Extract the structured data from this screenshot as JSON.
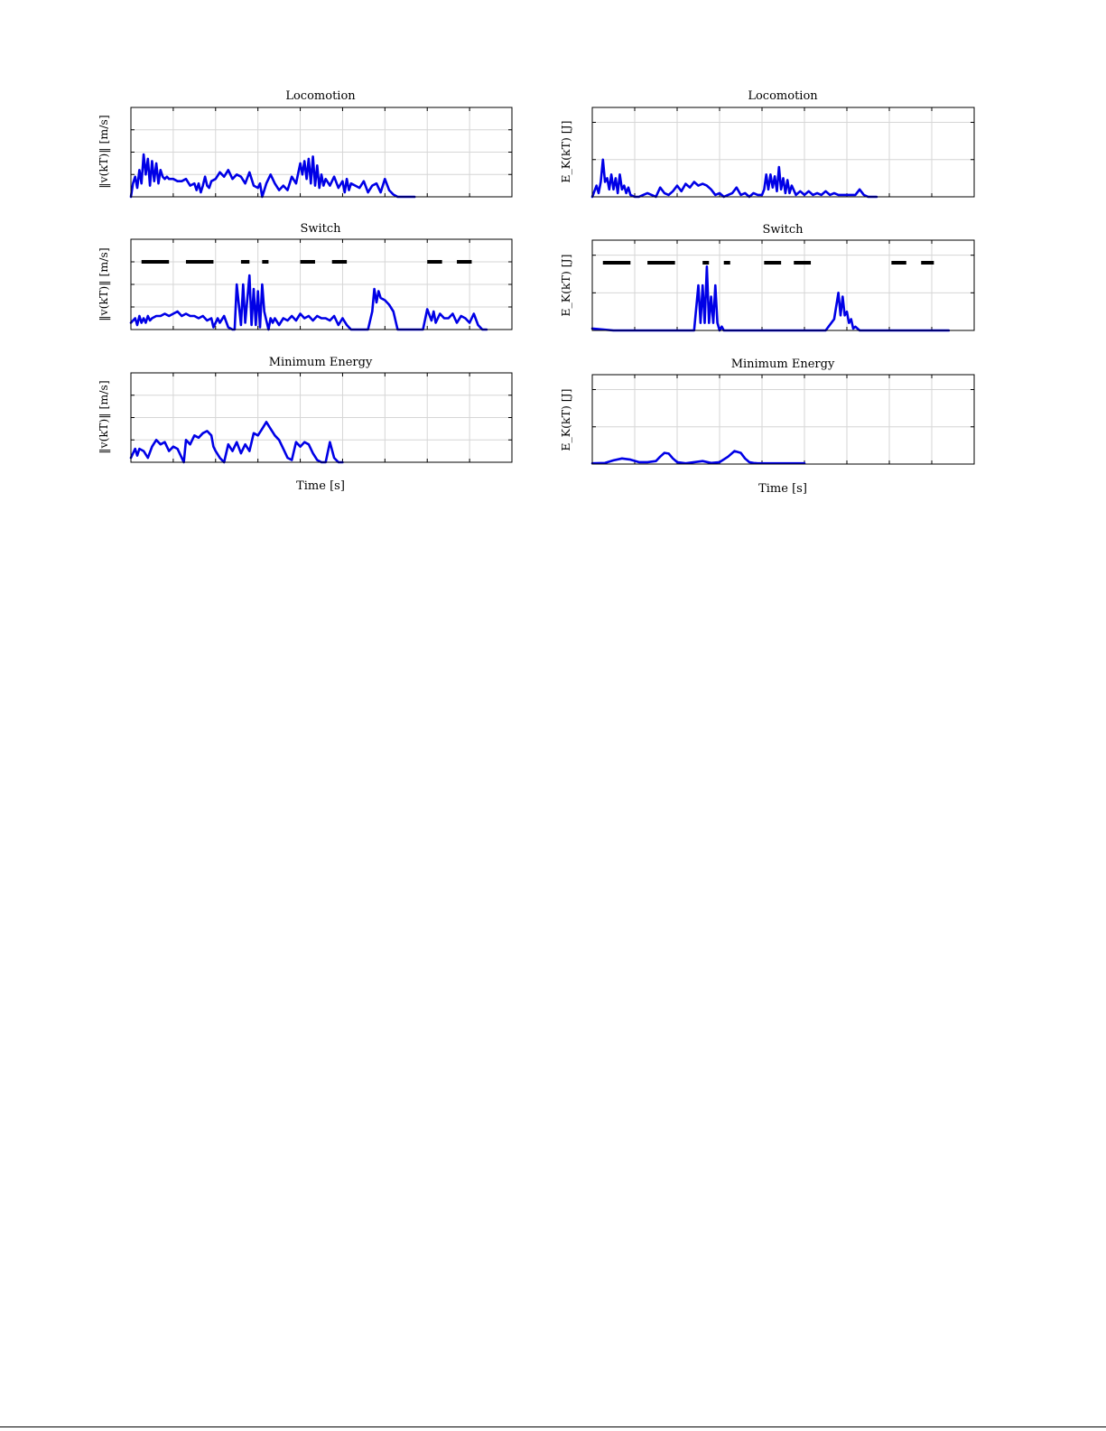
{
  "figure": {
    "xlabel": "Time [s]",
    "colors": {
      "series": "#0000e6",
      "switch_segments": "#000000",
      "grid": "#d6d6d6"
    }
  },
  "chart_data": [
    {
      "type": "line",
      "title": "Locomotion",
      "ylabel": "‖v(kT)‖ [m/s]",
      "xlim": [
        0,
        9
      ],
      "ylim": [
        0,
        4
      ],
      "xticks": [
        0,
        1,
        2,
        3,
        4,
        5,
        6,
        7,
        8,
        9
      ],
      "yticks": [
        0,
        1,
        2,
        3,
        4
      ],
      "grid": true,
      "series": [
        {
          "x": [
            0,
            0.05,
            0.1,
            0.15,
            0.2,
            0.25,
            0.3,
            0.35,
            0.4,
            0.45,
            0.5,
            0.55,
            0.6,
            0.65,
            0.7,
            0.75,
            0.8,
            0.85,
            0.9,
            1,
            1.1,
            1.2,
            1.3,
            1.4,
            1.5,
            1.55,
            1.6,
            1.65,
            1.7,
            1.75,
            1.8,
            1.85,
            1.9,
            2,
            2.1,
            2.2,
            2.3,
            2.4,
            2.5,
            2.6,
            2.7,
            2.8,
            2.9,
            3,
            3.05,
            3.1,
            3.15,
            3.2,
            3.3,
            3.4,
            3.5,
            3.6,
            3.7,
            3.8,
            3.9,
            4,
            4.05,
            4.1,
            4.15,
            4.2,
            4.25,
            4.3,
            4.35,
            4.4,
            4.45,
            4.5,
            4.55,
            4.6,
            4.7,
            4.8,
            4.9,
            5,
            5.05,
            5.1,
            5.15,
            5.2,
            5.3,
            5.4,
            5.5,
            5.6,
            5.7,
            5.8,
            5.9,
            6,
            6.1,
            6.2,
            6.3,
            6.4,
            6.5,
            6.6,
            6.7
          ],
          "y": [
            0,
            0.6,
            0.9,
            0.4,
            1.2,
            0.6,
            1.9,
            1.0,
            1.7,
            0.5,
            1.6,
            0.7,
            1.5,
            0.6,
            1.2,
            0.9,
            0.8,
            0.9,
            0.8,
            0.8,
            0.7,
            0.7,
            0.8,
            0.5,
            0.6,
            0.3,
            0.6,
            0.2,
            0.5,
            0.9,
            0.5,
            0.4,
            0.7,
            0.8,
            1.1,
            0.9,
            1.2,
            0.8,
            1.0,
            0.9,
            0.6,
            1.1,
            0.5,
            0.4,
            0.6,
            0,
            0.3,
            0.6,
            1.0,
            0.6,
            0.3,
            0.5,
            0.3,
            0.9,
            0.6,
            1.5,
            1.0,
            1.6,
            0.8,
            1.7,
            0.6,
            1.8,
            0.5,
            1.4,
            0.4,
            1.0,
            0.5,
            0.8,
            0.5,
            0.9,
            0.4,
            0.7,
            0.2,
            0.8,
            0.3,
            0.6,
            0.5,
            0.4,
            0.7,
            0.2,
            0.5,
            0.6,
            0.2,
            0.8,
            0.3,
            0.1,
            0,
            0,
            0,
            0,
            0
          ]
        }
      ]
    },
    {
      "type": "line",
      "title": "Locomotion",
      "ylabel": "E_K(kT) [J]",
      "xlim": [
        0,
        9
      ],
      "ylim": [
        0,
        2.4
      ],
      "xticks": [
        0,
        1,
        2,
        3,
        4,
        5,
        6,
        7,
        8,
        9
      ],
      "yticks": [
        0,
        1,
        2
      ],
      "grid": true,
      "series": [
        {
          "x": [
            0,
            0.1,
            0.15,
            0.2,
            0.25,
            0.3,
            0.35,
            0.4,
            0.45,
            0.5,
            0.55,
            0.6,
            0.65,
            0.7,
            0.75,
            0.8,
            0.85,
            0.9,
            1,
            1.1,
            1.2,
            1.3,
            1.4,
            1.5,
            1.6,
            1.7,
            1.8,
            1.9,
            2,
            2.1,
            2.2,
            2.3,
            2.4,
            2.5,
            2.6,
            2.7,
            2.8,
            2.9,
            3,
            3.1,
            3.2,
            3.3,
            3.4,
            3.5,
            3.6,
            3.7,
            3.8,
            3.9,
            4,
            4.05,
            4.1,
            4.15,
            4.2,
            4.25,
            4.3,
            4.35,
            4.4,
            4.45,
            4.5,
            4.55,
            4.6,
            4.65,
            4.7,
            4.8,
            4.9,
            5,
            5.1,
            5.2,
            5.3,
            5.4,
            5.5,
            5.6,
            5.7,
            5.8,
            5.9,
            6,
            6.1,
            6.2,
            6.3,
            6.4,
            6.5,
            6.6,
            6.7
          ],
          "y": [
            0,
            0.3,
            0.1,
            0.4,
            1.0,
            0.4,
            0.5,
            0.2,
            0.6,
            0.2,
            0.5,
            0.1,
            0.6,
            0.2,
            0.3,
            0.1,
            0.25,
            0.05,
            0,
            0,
            0.05,
            0.1,
            0.05,
            0,
            0.25,
            0.1,
            0.05,
            0.15,
            0.3,
            0.15,
            0.35,
            0.25,
            0.4,
            0.3,
            0.35,
            0.3,
            0.2,
            0.05,
            0.1,
            0,
            0.05,
            0.1,
            0.25,
            0.05,
            0.1,
            0,
            0.1,
            0.05,
            0.05,
            0.2,
            0.6,
            0.2,
            0.6,
            0.25,
            0.55,
            0.15,
            0.8,
            0.2,
            0.5,
            0.1,
            0.45,
            0.1,
            0.3,
            0.05,
            0.15,
            0.05,
            0.15,
            0.05,
            0.1,
            0.05,
            0.15,
            0.05,
            0.1,
            0.05,
            0.05,
            0.05,
            0.05,
            0.05,
            0.2,
            0.05,
            0,
            0,
            0
          ]
        }
      ]
    },
    {
      "type": "line",
      "title": "Switch",
      "ylabel": "‖v(kT)‖ [m/s]",
      "xlim": [
        0,
        9
      ],
      "ylim": [
        0,
        4
      ],
      "xticks": [
        0,
        1,
        2,
        3,
        4,
        5,
        6,
        7,
        8,
        9
      ],
      "yticks": [
        0,
        1,
        2,
        3,
        4
      ],
      "grid": true,
      "segments": [
        [
          0.25,
          0.9
        ],
        [
          1.3,
          1.95
        ],
        [
          2.6,
          2.8
        ],
        [
          3.1,
          3.25
        ],
        [
          4.0,
          4.35
        ],
        [
          4.75,
          5.1
        ],
        [
          7.0,
          7.35
        ],
        [
          7.7,
          8.05
        ]
      ],
      "segment_level": 3.0,
      "series": [
        {
          "x": [
            0,
            0.1,
            0.15,
            0.2,
            0.25,
            0.3,
            0.35,
            0.4,
            0.45,
            0.5,
            0.6,
            0.7,
            0.8,
            0.9,
            1,
            1.1,
            1.2,
            1.3,
            1.4,
            1.5,
            1.6,
            1.7,
            1.8,
            1.9,
            1.95,
            2,
            2.05,
            2.1,
            2.2,
            2.3,
            2.4,
            2.45,
            2.5,
            2.6,
            2.65,
            2.7,
            2.8,
            2.85,
            2.9,
            2.95,
            3.0,
            3.05,
            3.1,
            3.15,
            3.2,
            3.25,
            3.3,
            3.35,
            3.4,
            3.5,
            3.6,
            3.7,
            3.8,
            3.9,
            4,
            4.1,
            4.2,
            4.3,
            4.4,
            4.5,
            4.6,
            4.7,
            4.8,
            4.9,
            5,
            5.1,
            5.2,
            5.3,
            5.5,
            5.6,
            5.7,
            5.75,
            5.8,
            5.85,
            5.9,
            6,
            6.1,
            6.2,
            6.3,
            6.5,
            6.8,
            6.9,
            7,
            7.1,
            7.15,
            7.2,
            7.3,
            7.4,
            7.5,
            7.6,
            7.7,
            7.8,
            7.9,
            8,
            8.1,
            8.2,
            8.3,
            8.4
          ],
          "y": [
            0.3,
            0.5,
            0.2,
            0.6,
            0.3,
            0.5,
            0.3,
            0.6,
            0.4,
            0.5,
            0.6,
            0.6,
            0.7,
            0.6,
            0.7,
            0.8,
            0.6,
            0.7,
            0.6,
            0.6,
            0.5,
            0.6,
            0.4,
            0.5,
            0.1,
            0.3,
            0.5,
            0.3,
            0.6,
            0.1,
            0,
            0,
            2.0,
            0.2,
            2.0,
            0.3,
            2.4,
            0.2,
            1.8,
            0.2,
            1.7,
            0.1,
            2.0,
            0.8,
            0.4,
            0,
            0.5,
            0.3,
            0.5,
            0.2,
            0.5,
            0.4,
            0.6,
            0.4,
            0.7,
            0.5,
            0.6,
            0.4,
            0.6,
            0.5,
            0.5,
            0.4,
            0.6,
            0.2,
            0.5,
            0.2,
            0,
            0,
            0,
            0,
            0.8,
            1.8,
            1.2,
            1.7,
            1.4,
            1.3,
            1.1,
            0.8,
            0,
            0,
            0,
            0,
            0.9,
            0.4,
            0.8,
            0.3,
            0.7,
            0.5,
            0.5,
            0.7,
            0.3,
            0.6,
            0.5,
            0.3,
            0.7,
            0.2,
            0,
            0
          ]
        }
      ]
    },
    {
      "type": "line",
      "title": "Switch",
      "ylabel": "E_K(kT) [J]",
      "xlim": [
        0,
        9
      ],
      "ylim": [
        0,
        2.4
      ],
      "xticks": [
        0,
        1,
        2,
        3,
        4,
        5,
        6,
        7,
        8,
        9
      ],
      "yticks": [
        0,
        1,
        2
      ],
      "grid": true,
      "segments": [
        [
          0.25,
          0.9
        ],
        [
          1.3,
          1.95
        ],
        [
          2.6,
          2.75
        ],
        [
          3.1,
          3.25
        ],
        [
          4.05,
          4.45
        ],
        [
          4.75,
          5.15
        ],
        [
          7.05,
          7.4
        ],
        [
          7.75,
          8.05
        ]
      ],
      "segment_level": 1.8,
      "series": [
        {
          "x": [
            0,
            0.5,
            1,
            1.5,
            2,
            2.3,
            2.4,
            2.5,
            2.55,
            2.6,
            2.65,
            2.7,
            2.75,
            2.8,
            2.85,
            2.9,
            2.95,
            3.0,
            3.05,
            3.1,
            3.15,
            3.2,
            3.25,
            3.3,
            3.4,
            3.5,
            4,
            4.5,
            5,
            5.5,
            5.7,
            5.8,
            5.85,
            5.9,
            5.95,
            6.0,
            6.05,
            6.1,
            6.15,
            6.2,
            6.3,
            6.4,
            6.6,
            7,
            7.5,
            8,
            8.4
          ],
          "y": [
            0.05,
            0,
            0,
            0,
            0,
            0,
            0,
            1.2,
            0.2,
            1.2,
            0.2,
            1.7,
            0.2,
            0.9,
            0.2,
            1.2,
            0.2,
            0,
            0.1,
            0,
            0,
            0,
            0,
            0,
            0,
            0,
            0,
            0,
            0,
            0,
            0.3,
            1.0,
            0.4,
            0.9,
            0.4,
            0.5,
            0.2,
            0.3,
            0.05,
            0.1,
            0,
            0,
            0,
            0,
            0,
            0,
            0
          ]
        }
      ]
    },
    {
      "type": "line",
      "title": "Minimum Energy",
      "ylabel": "‖v(kT)‖ [m/s]",
      "xlim": [
        0,
        9
      ],
      "ylim": [
        0,
        4
      ],
      "xticks": [
        0,
        1,
        2,
        3,
        4,
        5,
        6,
        7,
        8,
        9
      ],
      "yticks": [
        0,
        1,
        2,
        3,
        4
      ],
      "grid": true,
      "series": [
        {
          "x": [
            0,
            0.1,
            0.15,
            0.2,
            0.3,
            0.4,
            0.5,
            0.6,
            0.7,
            0.8,
            0.9,
            1.0,
            1.1,
            1.2,
            1.25,
            1.3,
            1.4,
            1.5,
            1.6,
            1.7,
            1.8,
            1.9,
            1.95,
            2.0,
            2.1,
            2.2,
            2.3,
            2.4,
            2.5,
            2.6,
            2.7,
            2.8,
            2.9,
            3.0,
            3.1,
            3.2,
            3.3,
            3.4,
            3.5,
            3.6,
            3.7,
            3.8,
            3.9,
            4.0,
            4.1,
            4.2,
            4.3,
            4.4,
            4.5,
            4.6,
            4.7,
            4.8,
            4.9,
            5.0
          ],
          "y": [
            0.2,
            0.6,
            0.3,
            0.6,
            0.5,
            0.2,
            0.7,
            1.0,
            0.8,
            0.9,
            0.5,
            0.7,
            0.6,
            0.2,
            0,
            1.0,
            0.8,
            1.2,
            1.1,
            1.3,
            1.4,
            1.2,
            0.7,
            0.5,
            0.2,
            0,
            0.8,
            0.5,
            0.9,
            0.4,
            0.8,
            0.5,
            1.3,
            1.2,
            1.5,
            1.8,
            1.5,
            1.2,
            1.0,
            0.6,
            0.2,
            0.1,
            0.9,
            0.7,
            0.9,
            0.8,
            0.4,
            0.1,
            0,
            0,
            0.9,
            0.2,
            0,
            0
          ]
        }
      ]
    },
    {
      "type": "line",
      "title": "Minimum Energy",
      "ylabel": "E_K(kT) [J]",
      "xlim": [
        0,
        9
      ],
      "ylim": [
        0,
        2.4
      ],
      "xticks": [
        0,
        1,
        2,
        3,
        4,
        5,
        6,
        7,
        8,
        9
      ],
      "yticks": [
        0,
        1,
        2
      ],
      "grid": true,
      "series": [
        {
          "x": [
            0,
            0.3,
            0.5,
            0.7,
            0.9,
            1.1,
            1.3,
            1.5,
            1.6,
            1.7,
            1.8,
            1.9,
            2.0,
            2.2,
            2.4,
            2.6,
            2.8,
            3.0,
            3.2,
            3.35,
            3.5,
            3.6,
            3.7,
            3.8,
            3.9,
            4.0,
            4.2,
            4.5,
            5.0
          ],
          "y": [
            0.02,
            0.03,
            0.1,
            0.15,
            0.12,
            0.05,
            0.05,
            0.08,
            0.2,
            0.3,
            0.28,
            0.15,
            0.05,
            0.02,
            0.05,
            0.08,
            0.03,
            0.05,
            0.2,
            0.35,
            0.3,
            0.15,
            0.05,
            0.03,
            0.02,
            0.02,
            0.02,
            0.02,
            0.02
          ]
        }
      ]
    }
  ]
}
